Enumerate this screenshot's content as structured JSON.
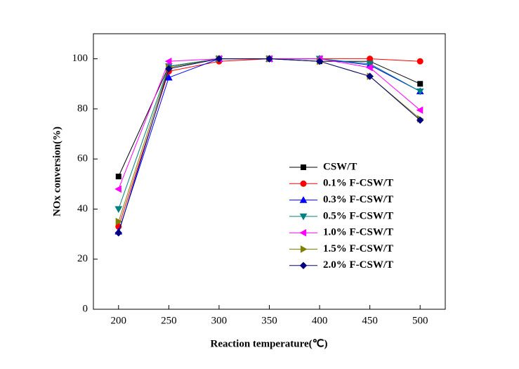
{
  "chart_data": {
    "type": "line",
    "x_label": "Reaction temperature(℃)",
    "y_label": "NOx conversion(%)",
    "x": [
      200,
      250,
      300,
      350,
      400,
      450,
      500
    ],
    "xlim": [
      175,
      525
    ],
    "xticks": [
      200,
      250,
      300,
      350,
      400,
      450,
      500
    ],
    "ylim": [
      0,
      110
    ],
    "yticks": [
      0,
      20,
      40,
      60,
      80,
      100
    ],
    "legend": "right",
    "series": [
      {
        "name": "CSW/T",
        "color": "#000000",
        "marker": "square",
        "values": [
          53,
          97,
          100,
          100,
          99,
          99,
          90
        ]
      },
      {
        "name": "0.1% F-CSW/T",
        "color": "#ff0000",
        "marker": "circle",
        "values": [
          33,
          95,
          99,
          100,
          100,
          100,
          99
        ]
      },
      {
        "name": "0.3% F-CSW/T",
        "color": "#0000ff",
        "marker": "triangle-up",
        "values": [
          31,
          92.5,
          100,
          100,
          100,
          97.5,
          87
        ]
      },
      {
        "name": "0.5% F-CSW/T",
        "color": "#008080",
        "marker": "triangle-down",
        "values": [
          40,
          97,
          100,
          100,
          100,
          98,
          87
        ]
      },
      {
        "name": "1.0% F-CSW/T",
        "color": "#ff00ff",
        "marker": "triangle-left",
        "values": [
          48,
          99,
          100,
          100,
          100,
          96.5,
          79.5
        ]
      },
      {
        "name": "1.5% F-CSW/T",
        "color": "#808000",
        "marker": "triangle-right",
        "values": [
          35,
          96.5,
          100,
          100,
          99,
          93,
          76
        ]
      },
      {
        "name": "2.0% F-CSW/T",
        "color": "#000080",
        "marker": "diamond",
        "values": [
          30.5,
          96,
          100,
          100,
          99,
          93,
          75.5
        ]
      }
    ]
  }
}
